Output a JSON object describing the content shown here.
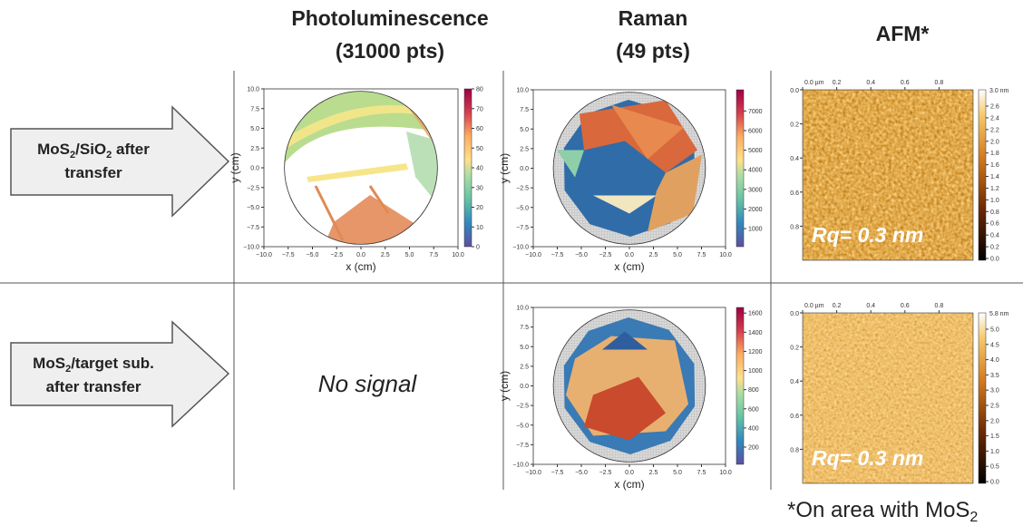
{
  "headers": [
    [
      "Photoluminescence",
      "(31000 pts)"
    ],
    [
      "Raman",
      "(49 pts)"
    ],
    [
      "AFM*"
    ]
  ],
  "rows": [
    {
      "label": [
        [
          "MoS",
          "2",
          "/SiO",
          "2",
          " after"
        ],
        [
          "transfer"
        ]
      ]
    },
    {
      "label": [
        [
          "MoS",
          "2",
          "/target sub."
        ],
        [
          "after transfer"
        ]
      ]
    }
  ],
  "pl_map": {
    "xlabel": "x (cm)",
    "ylabel": "y (cm)",
    "xticks": [
      "−10.0",
      "−7.5",
      "−5.0",
      "−2.5",
      "0.0",
      "2.5",
      "5.0",
      "7.5",
      "10.0"
    ],
    "yticks": [
      "10.0",
      "7.5",
      "5.0",
      "2.5",
      "0.0",
      "−2.5",
      "−5.0",
      "−7.5",
      "−10.0"
    ],
    "cbar_ticks": [
      "0",
      "10",
      "20",
      "30",
      "40",
      "50",
      "60",
      "70",
      "80"
    ]
  },
  "no_signal": "No signal",
  "raman_maps": [
    {
      "xlabel": "x (cm)",
      "ylabel": "y (cm)",
      "xticks": [
        "−10.0",
        "−7.5",
        "−5.0",
        "−2.5",
        "0.0",
        "2.5",
        "5.0",
        "7.5",
        "10.0"
      ],
      "yticks": [
        "10.0",
        "7.5",
        "5.0",
        "2.5",
        "0.0",
        "−2.5",
        "−5.0",
        "−7.5",
        "−10.0"
      ],
      "cbar_ticks": [
        "1000",
        "2000",
        "3000",
        "4000",
        "5000",
        "6000",
        "7000"
      ]
    },
    {
      "xlabel": "x (cm)",
      "ylabel": "y (cm)",
      "xticks": [
        "−10.0",
        "−7.5",
        "−5.0",
        "−2.5",
        "0.0",
        "2.5",
        "5.0",
        "7.5",
        "10.0"
      ],
      "yticks": [
        "10.0",
        "7.5",
        "5.0",
        "2.5",
        "0.0",
        "−2.5",
        "−5.0",
        "−7.5",
        "−10.0"
      ],
      "cbar_ticks": [
        "200",
        "400",
        "600",
        "800",
        "1000",
        "1200",
        "1400",
        "1600"
      ]
    }
  ],
  "afm": [
    {
      "xticks": [
        "0.0 µm",
        "0.2",
        "0.4",
        "0.6",
        "0.8"
      ],
      "yticks": [
        "0.0",
        "0.2",
        "0.4",
        "0.6",
        "0.8"
      ],
      "cbar_top": "3.0 nm",
      "cbar_ticks": [
        "2.6",
        "2.4",
        "2.2",
        "2.0",
        "1.8",
        "1.6",
        "1.4",
        "1.2",
        "1.0",
        "0.8",
        "0.6",
        "0.4",
        "0.2",
        "0.0"
      ],
      "rq": "Rq= 0.3 nm"
    },
    {
      "xticks": [
        "0.0 µm",
        "0.2",
        "0.4",
        "0.6",
        "0.8"
      ],
      "yticks": [
        "0.0",
        "0.2",
        "0.4",
        "0.6",
        "0.8"
      ],
      "cbar_top": "5.8 nm",
      "cbar_ticks": [
        "5.0",
        "4.5",
        "4.0",
        "3.5",
        "3.0",
        "2.5",
        "2.0",
        "1.5",
        "1.0",
        "0.5",
        "0.0"
      ],
      "rq": "Rq= 0.3 nm"
    }
  ],
  "footnote": [
    "*On area with MoS",
    "2"
  ]
}
